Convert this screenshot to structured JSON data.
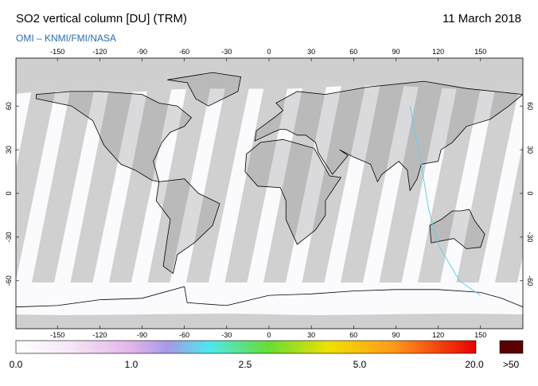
{
  "header": {
    "title": "SO2 vertical column [DU] (TRM)",
    "date": "11 March 2018",
    "subtitle": "OMI  –  KNMI/FMI/NASA"
  },
  "map": {
    "lon_ticks": [
      -150,
      -120,
      -90,
      -60,
      -30,
      0,
      30,
      60,
      90,
      120,
      150
    ],
    "lat_ticks": [
      60,
      30,
      0,
      -30,
      -60
    ]
  },
  "colorbar": {
    "labels": [
      "0.0",
      "1.0",
      "2.5",
      "5.0",
      "20.0",
      ">50"
    ]
  }
}
